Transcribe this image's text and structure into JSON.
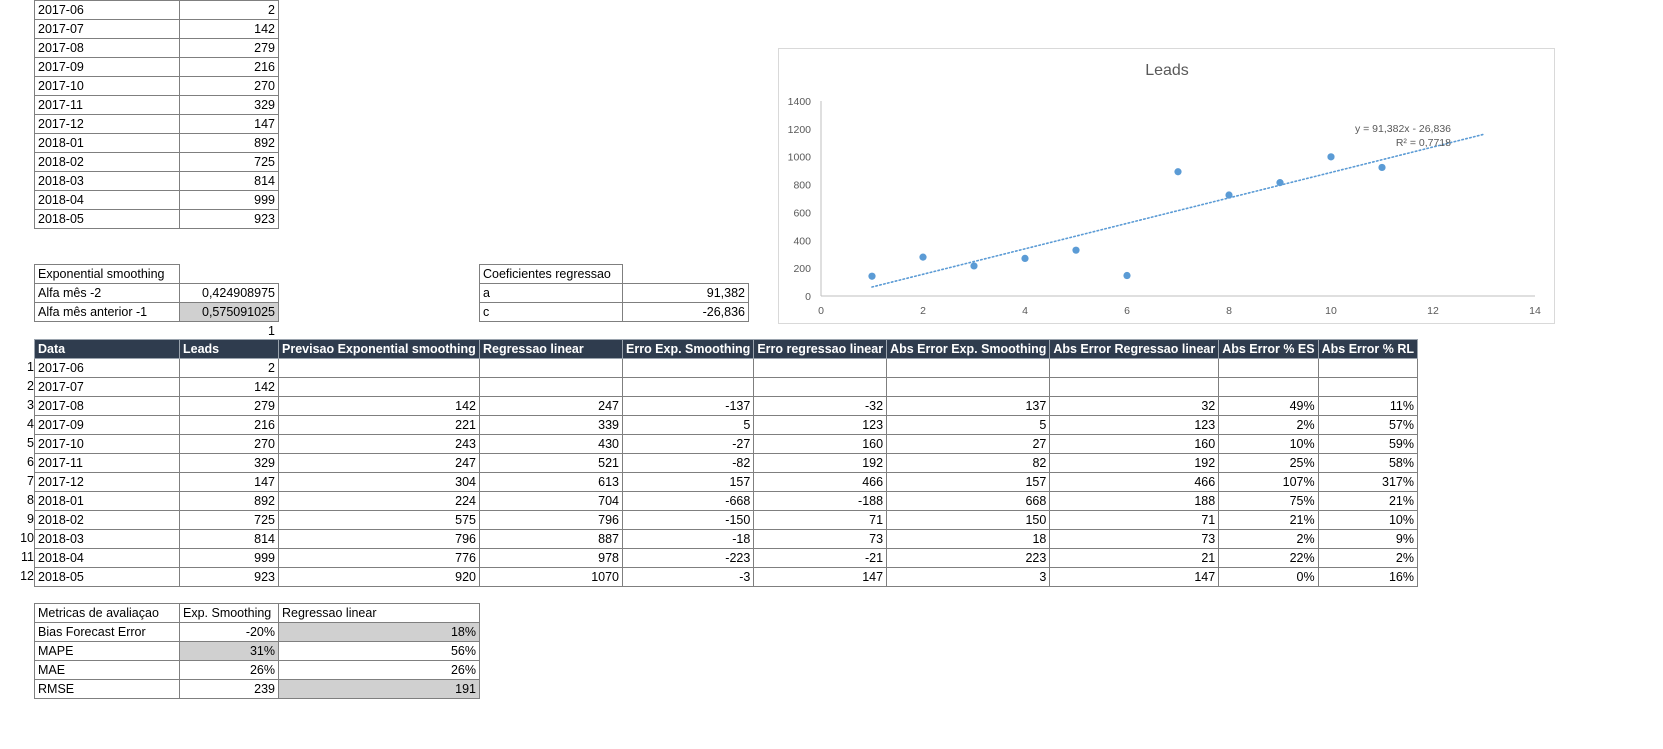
{
  "top_list": [
    [
      "2017-06",
      "2"
    ],
    [
      "2017-07",
      "142"
    ],
    [
      "2017-08",
      "279"
    ],
    [
      "2017-09",
      "216"
    ],
    [
      "2017-10",
      "270"
    ],
    [
      "2017-11",
      "329"
    ],
    [
      "2017-12",
      "147"
    ],
    [
      "2018-01",
      "892"
    ],
    [
      "2018-02",
      "725"
    ],
    [
      "2018-03",
      "814"
    ],
    [
      "2018-04",
      "999"
    ],
    [
      "2018-05",
      "923"
    ]
  ],
  "exp_smoothing": {
    "title": "Exponential smoothing",
    "rows": [
      [
        "Alfa mês -2",
        "0,424908975"
      ],
      [
        "Alfa mês anterior -1",
        "0,575091025"
      ]
    ],
    "sum": "1"
  },
  "regression": {
    "title": "Coeficientes regressao",
    "rows": [
      [
        "a",
        "91,382"
      ],
      [
        "c",
        "-26,836"
      ]
    ]
  },
  "main_table": {
    "headers": [
      "Data",
      "Leads",
      "Previsao  Exponential smoothing",
      "Regressao linear",
      "Erro Exp. Smoothing",
      "Erro regressao linear",
      "Abs Error Exp. Smoothing",
      "Abs Error Regressao linear",
      "Abs Error % ES",
      "Abs Error % RL"
    ],
    "rows": [
      [
        "1",
        "2017-06",
        "2",
        "",
        "",
        "",
        "",
        "",
        "",
        "",
        ""
      ],
      [
        "2",
        "2017-07",
        "142",
        "",
        "",
        "",
        "",
        "",
        "",
        "",
        ""
      ],
      [
        "3",
        "2017-08",
        "279",
        "142",
        "247",
        "-137",
        "-32",
        "137",
        "32",
        "49%",
        "11%"
      ],
      [
        "4",
        "2017-09",
        "216",
        "221",
        "339",
        "5",
        "123",
        "5",
        "123",
        "2%",
        "57%"
      ],
      [
        "5",
        "2017-10",
        "270",
        "243",
        "430",
        "-27",
        "160",
        "27",
        "160",
        "10%",
        "59%"
      ],
      [
        "6",
        "2017-11",
        "329",
        "247",
        "521",
        "-82",
        "192",
        "82",
        "192",
        "25%",
        "58%"
      ],
      [
        "7",
        "2017-12",
        "147",
        "304",
        "613",
        "157",
        "466",
        "157",
        "466",
        "107%",
        "317%"
      ],
      [
        "8",
        "2018-01",
        "892",
        "224",
        "704",
        "-668",
        "-188",
        "668",
        "188",
        "75%",
        "21%"
      ],
      [
        "9",
        "2018-02",
        "725",
        "575",
        "796",
        "-150",
        "71",
        "150",
        "71",
        "21%",
        "10%"
      ],
      [
        "10",
        "2018-03",
        "814",
        "796",
        "887",
        "-18",
        "73",
        "18",
        "73",
        "2%",
        "9%"
      ],
      [
        "11",
        "2018-04",
        "999",
        "776",
        "978",
        "-223",
        "-21",
        "223",
        "21",
        "22%",
        "2%"
      ],
      [
        "12",
        "2018-05",
        "923",
        "920",
        "1070",
        "-3",
        "147",
        "3",
        "147",
        "0%",
        "16%"
      ]
    ]
  },
  "metrics": {
    "headers": [
      "Metricas de avaliaçao",
      "Exp. Smoothing",
      "Regressao linear"
    ],
    "rows": [
      [
        "Bias Forecast Error",
        "-20%",
        "18%"
      ],
      [
        "MAPE",
        "31%",
        "56%"
      ],
      [
        "MAE",
        "26%",
        "26%"
      ],
      [
        "RMSE",
        "239",
        "191"
      ]
    ]
  },
  "chart_data": {
    "type": "scatter",
    "title": "Leads",
    "x": [
      1,
      2,
      3,
      4,
      5,
      6,
      7,
      8,
      9,
      10,
      11
    ],
    "y": [
      142,
      279,
      216,
      270,
      329,
      147,
      892,
      725,
      814,
      999,
      923
    ],
    "xlim": [
      0,
      14
    ],
    "ylim": [
      0,
      1400
    ],
    "xticks": [
      "0",
      "2",
      "4",
      "6",
      "8",
      "10",
      "12",
      "14"
    ],
    "yticks": [
      "0",
      "200",
      "400",
      "600",
      "800",
      "1000",
      "1200",
      "1400"
    ],
    "trendline": {
      "slope": 91.382,
      "intercept": -26.836,
      "x_range": [
        1,
        13
      ],
      "equation": "y = 91,382x - 26,836",
      "r2": "R² = 0,7718"
    },
    "colors": {
      "points": "#5b9bd5",
      "trend": "#5b9bd5",
      "axis": "#bfbfbf",
      "text": "#595959"
    },
    "grid": false,
    "legend": "none"
  }
}
